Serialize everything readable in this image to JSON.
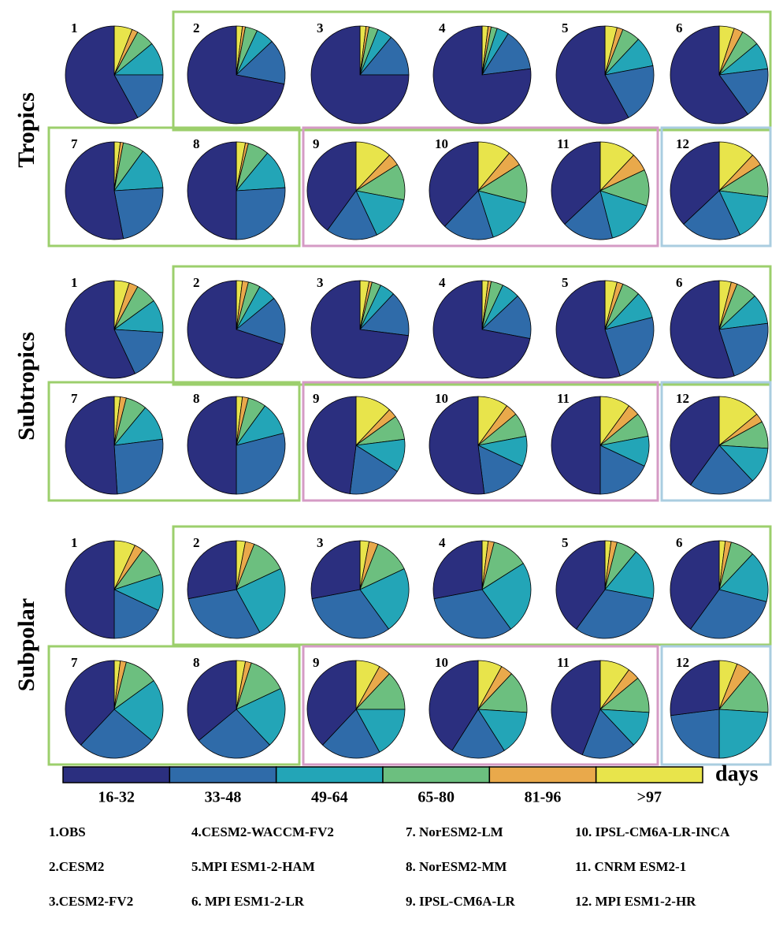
{
  "chart_data": {
    "type": "pie",
    "categories": [
      "16-32",
      "33-48",
      "49-64",
      "65-80",
      "81-96",
      ">97"
    ],
    "colors": [
      "#2b2f7f",
      "#2f6ba9",
      "#23a5b7",
      "#6cbf7f",
      "#e9a94b",
      "#e8e44b"
    ],
    "legend_unit": "days",
    "regions": [
      {
        "name": "Tropics",
        "panels": [
          {
            "label": "1",
            "values": [
              58,
              17,
              11,
              6,
              2,
              6
            ]
          },
          {
            "label": "2",
            "values": [
              72,
              15,
              6,
              4,
              1,
              2
            ]
          },
          {
            "label": "3",
            "values": [
              75,
              14,
              5,
              3,
              1,
              2
            ]
          },
          {
            "label": "4",
            "values": [
              77,
              14,
              4,
              2,
              1,
              2
            ]
          },
          {
            "label": "5",
            "values": [
              58,
              20,
              10,
              6,
              2,
              4
            ]
          },
          {
            "label": "6",
            "values": [
              60,
              17,
              9,
              6,
              3,
              5
            ]
          },
          {
            "label": "7",
            "values": [
              53,
              23,
              14,
              7,
              1,
              2
            ]
          },
          {
            "label": "8",
            "values": [
              50,
              26,
              13,
              7,
              1,
              3
            ]
          },
          {
            "label": "9",
            "values": [
              40,
              17,
              15,
              12,
              4,
              12
            ]
          },
          {
            "label": "10",
            "values": [
              38,
              17,
              16,
              13,
              5,
              11
            ]
          },
          {
            "label": "11",
            "values": [
              37,
              17,
              16,
              12,
              6,
              12
            ]
          },
          {
            "label": "12",
            "values": [
              37,
              20,
              16,
              11,
              4,
              12
            ]
          }
        ]
      },
      {
        "name": "Subtropics",
        "panels": [
          {
            "label": "1",
            "values": [
              57,
              17,
              11,
              7,
              3,
              5
            ]
          },
          {
            "label": "2",
            "values": [
              70,
              16,
              6,
              4,
              2,
              2
            ]
          },
          {
            "label": "3",
            "values": [
              73,
              15,
              5,
              3,
              1,
              3
            ]
          },
          {
            "label": "4",
            "values": [
              72,
              15,
              6,
              4,
              1,
              2
            ]
          },
          {
            "label": "5",
            "values": [
              55,
              24,
              9,
              6,
              2,
              4
            ]
          },
          {
            "label": "6",
            "values": [
              55,
              22,
              10,
              7,
              2,
              4
            ]
          },
          {
            "label": "7",
            "values": [
              51,
              26,
              12,
              7,
              2,
              2
            ]
          },
          {
            "label": "8",
            "values": [
              50,
              29,
              11,
              6,
              2,
              2
            ]
          },
          {
            "label": "9",
            "values": [
              48,
              18,
              11,
              8,
              3,
              12
            ]
          },
          {
            "label": "10",
            "values": [
              52,
              16,
              10,
              8,
              4,
              10
            ]
          },
          {
            "label": "11",
            "values": [
              50,
              18,
              10,
              8,
              4,
              10
            ]
          },
          {
            "label": "12",
            "values": [
              40,
              22,
              12,
              9,
              3,
              14
            ]
          }
        ]
      },
      {
        "name": "Subpolar",
        "panels": [
          {
            "label": "1",
            "values": [
              50,
              18,
              12,
              10,
              3,
              7
            ]
          },
          {
            "label": "2",
            "values": [
              28,
              30,
              24,
              12,
              3,
              3
            ]
          },
          {
            "label": "3",
            "values": [
              28,
              32,
              22,
              12,
              3,
              3
            ]
          },
          {
            "label": "4",
            "values": [
              28,
              32,
              24,
              12,
              2,
              2
            ]
          },
          {
            "label": "5",
            "values": [
              40,
              32,
              17,
              7,
              2,
              2
            ]
          },
          {
            "label": "6",
            "values": [
              40,
              31,
              17,
              8,
              2,
              2
            ]
          },
          {
            "label": "7",
            "values": [
              38,
              26,
              21,
              11,
              2,
              2
            ]
          },
          {
            "label": "8",
            "values": [
              36,
              26,
              20,
              13,
              2,
              3
            ]
          },
          {
            "label": "9",
            "values": [
              38,
              20,
              17,
              13,
              4,
              8
            ]
          },
          {
            "label": "10",
            "values": [
              41,
              18,
              15,
              14,
              4,
              8
            ]
          },
          {
            "label": "11",
            "values": [
              44,
              18,
              12,
              12,
              4,
              10
            ]
          },
          {
            "label": "12",
            "values": [
              27,
              23,
              24,
              15,
              5,
              6
            ]
          }
        ]
      }
    ],
    "models": [
      "1.OBS",
      "2.CESM2",
      "3.CESM2-FV2",
      "4.CESM2-WACCM-FV2",
      "5.MPI ESM1-2-HAM",
      "6. MPI ESM1-2-LR",
      "7. NorESM2-LM",
      "8. NorESM2-MM",
      "9. IPSL-CM6A-LR",
      "10. IPSL-CM6A-LR-INCA",
      "11. CNRM ESM2-1",
      "12. MPI ESM1-2-HR"
    ]
  }
}
